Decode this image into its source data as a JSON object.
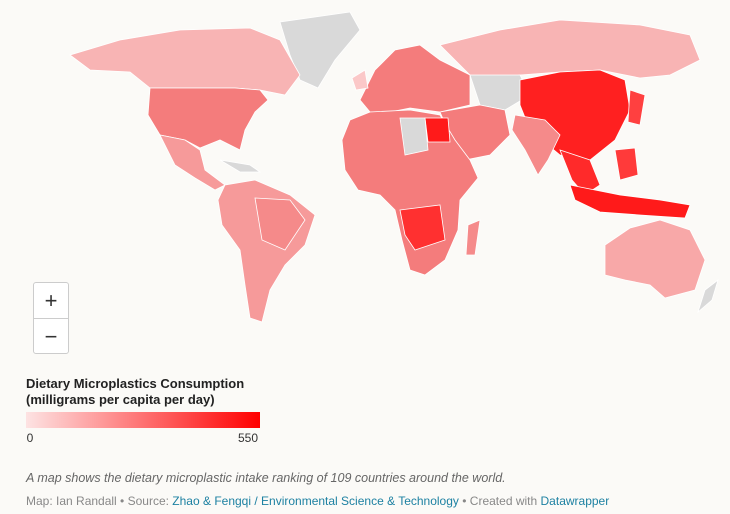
{
  "map": {
    "zoom_in": "+",
    "zoom_out": "−"
  },
  "legend": {
    "title_line1": "Dietary Microplastics Consumption",
    "title_line2": "(milligrams per capita per day)",
    "min": 0,
    "max": 550
  },
  "caption": "A map shows the dietary microplastic intake ranking of 109 countries around the world.",
  "credit": {
    "prefix": "Map: Ian Randall • Source:",
    "source": "Zhao & Fengqi / Environmental Science & Technology",
    "middle": "• Created with",
    "tool": "Datawrapper"
  }
}
